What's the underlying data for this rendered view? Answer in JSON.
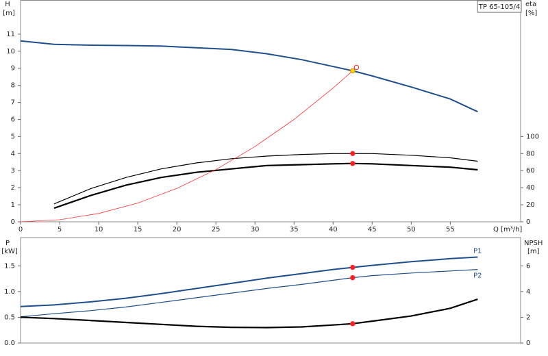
{
  "chart_data": [
    {
      "type": "line",
      "title": "TP 65-105/4",
      "ylabel": "H",
      "yunit": "[m]",
      "y2label": "eta",
      "y2unit": "[%]",
      "xlabel": "Q [m³/h]",
      "xlim": [
        0,
        64
      ],
      "xticks": [
        0,
        5,
        10,
        15,
        20,
        25,
        30,
        35,
        40,
        45,
        50,
        55
      ],
      "ylim": [
        0,
        13
      ],
      "yticks": [
        0,
        1,
        2,
        3,
        4,
        5,
        6,
        7,
        8,
        9,
        10,
        11
      ],
      "y2lim": [
        0,
        260
      ],
      "y2ticks": [
        0,
        20,
        40,
        60,
        80,
        100
      ],
      "series": [
        {
          "color": "#1f4e8c",
          "width": 2,
          "x": [
            0,
            4.3,
            9,
            13.5,
            18,
            22.5,
            27,
            31.5,
            36,
            40,
            42.5,
            45,
            50,
            55,
            58.5
          ],
          "values": [
            10.6,
            10.4,
            10.35,
            10.33,
            10.3,
            10.2,
            10.1,
            9.85,
            9.5,
            9.1,
            8.85,
            8.55,
            7.9,
            7.2,
            6.45
          ]
        },
        {
          "color": "#000000",
          "width": 1.2,
          "axis": "y2",
          "x": [
            4.3,
            9,
            13.5,
            18,
            22.5,
            27,
            31.5,
            36,
            40,
            42.5,
            45,
            50,
            55,
            58.5
          ],
          "values": [
            21,
            39,
            52,
            62,
            69,
            74,
            77,
            79,
            80,
            80,
            80,
            78,
            75,
            71
          ]
        },
        {
          "color": "#000000",
          "width": 2.2,
          "axis": "y2",
          "x": [
            4.3,
            9,
            13.5,
            18,
            22.5,
            27,
            31.5,
            36,
            40,
            42.5,
            45,
            50,
            55,
            58.5
          ],
          "values": [
            16,
            31,
            43,
            52,
            58,
            62,
            66,
            67,
            68,
            68.4,
            68,
            66,
            64,
            61
          ]
        },
        {
          "color": "#ff3030",
          "width": 0.8,
          "x": [
            0,
            5,
            10,
            15,
            20,
            25,
            30,
            35,
            40,
            42.5,
            43
          ],
          "values": [
            0,
            0.12,
            0.49,
            1.1,
            1.96,
            3.06,
            4.41,
            6.0,
            7.84,
            8.85,
            9.05
          ]
        }
      ],
      "markers": [
        {
          "x": 42.5,
          "y": 80,
          "axis": "y2",
          "fill": "#ff2020",
          "stroke": "#ff2020"
        },
        {
          "x": 42.5,
          "y": 68.4,
          "axis": "y2",
          "fill": "#ff2020",
          "stroke": "#ff2020"
        },
        {
          "x": 43,
          "y": 9.05,
          "fill": "#ffffff",
          "stroke": "#ff2020"
        },
        {
          "x": 42.5,
          "y": 8.85,
          "fill": "#ffd700",
          "stroke": "#e08000"
        }
      ]
    },
    {
      "type": "line",
      "ylabel": "P",
      "yunit": "[kW]",
      "y2label": "NPSH",
      "y2unit": "[m]",
      "xlim": [
        0,
        64
      ],
      "ylim": [
        0,
        2.05
      ],
      "yticks": [
        {
          "value": 0,
          "label": "0.0"
        },
        0.5,
        {
          "value": 1,
          "label": "1.0"
        },
        1.5
      ],
      "y2lim": [
        0,
        8.2
      ],
      "y2ticks": [
        0,
        2,
        4,
        6
      ],
      "series": [
        {
          "name": "P1",
          "color": "#1f4e8c",
          "width": 2,
          "x": [
            0,
            4.3,
            9,
            13.5,
            18,
            22.5,
            27,
            31.5,
            36,
            40,
            42.5,
            45,
            50,
            55,
            58.5
          ],
          "values": [
            0.71,
            0.74,
            0.8,
            0.87,
            0.96,
            1.06,
            1.16,
            1.26,
            1.35,
            1.43,
            1.47,
            1.51,
            1.58,
            1.64,
            1.67
          ]
        },
        {
          "name": "P2",
          "color": "#1f4e8c",
          "width": 1.2,
          "x": [
            0,
            4.3,
            9,
            13.5,
            18,
            22.5,
            27,
            31.5,
            36,
            40,
            42.5,
            45,
            50,
            55,
            58.5
          ],
          "values": [
            0.51,
            0.57,
            0.63,
            0.7,
            0.79,
            0.88,
            0.97,
            1.06,
            1.14,
            1.22,
            1.27,
            1.31,
            1.36,
            1.4,
            1.43
          ]
        },
        {
          "color": "#000000",
          "width": 2.2,
          "axis": "y2",
          "x": [
            0,
            4.3,
            9,
            13.5,
            18,
            22.5,
            27,
            31.5,
            36,
            40,
            42.5,
            45,
            50,
            55,
            58.5
          ],
          "values": [
            2.0,
            1.9,
            1.75,
            1.6,
            1.45,
            1.3,
            1.22,
            1.2,
            1.25,
            1.4,
            1.5,
            1.7,
            2.1,
            2.7,
            3.4
          ]
        }
      ],
      "markers": [
        {
          "x": 42.5,
          "y": 1.47,
          "fill": "#ff2020",
          "stroke": "#ff2020"
        },
        {
          "x": 42.5,
          "y": 1.27,
          "fill": "#ff2020",
          "stroke": "#ff2020"
        },
        {
          "x": 42.5,
          "y": 1.5,
          "axis": "y2",
          "fill": "#ff2020",
          "stroke": "#ff2020"
        }
      ]
    }
  ]
}
